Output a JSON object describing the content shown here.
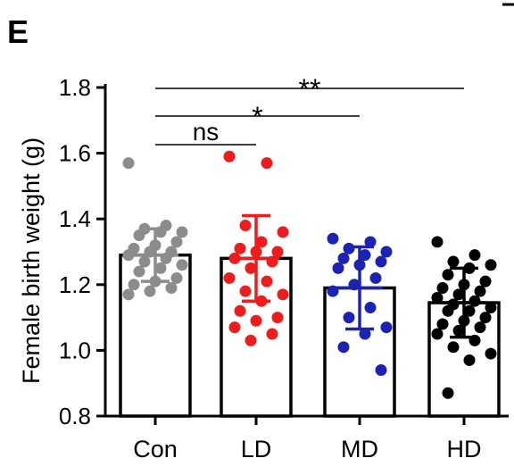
{
  "panel_label": "E",
  "chart_data": {
    "type": "bar",
    "title": "",
    "ylabel": "Female birth weight (g)",
    "xlabel": "",
    "ylim": [
      0.8,
      1.8
    ],
    "yticks": [
      "0.8",
      "1.0",
      "1.2",
      "1.4",
      "1.6",
      "1.8"
    ],
    "categories": [
      "Con",
      "LD",
      "MD",
      "HD"
    ],
    "means": [
      1.29,
      1.28,
      1.19,
      1.145
    ],
    "sd": [
      0.08,
      0.13,
      0.125,
      0.105
    ],
    "colors": [
      "#8c8c8c",
      "#ee1c1c",
      "#1c22b4",
      "#000000"
    ],
    "points": [
      [
        1.57,
        1.38,
        1.37,
        1.36,
        1.36,
        1.35,
        1.33,
        1.32,
        1.31,
        1.3,
        1.3,
        1.29,
        1.28,
        1.27,
        1.26,
        1.25,
        1.24,
        1.22,
        1.21,
        1.2,
        1.19,
        1.18,
        1.17
      ],
      [
        1.59,
        1.57,
        1.38,
        1.36,
        1.33,
        1.31,
        1.3,
        1.3,
        1.28,
        1.27,
        1.25,
        1.22,
        1.21,
        1.18,
        1.17,
        1.15,
        1.12,
        1.1,
        1.09,
        1.07,
        1.05,
        1.03
      ],
      [
        1.34,
        1.33,
        1.31,
        1.3,
        1.29,
        1.28,
        1.27,
        1.26,
        1.25,
        1.22,
        1.2,
        1.18,
        1.13,
        1.1,
        1.07,
        1.05,
        1.01,
        0.94
      ],
      [
        1.33,
        1.29,
        1.27,
        1.26,
        1.25,
        1.23,
        1.21,
        1.2,
        1.19,
        1.18,
        1.17,
        1.16,
        1.15,
        1.14,
        1.13,
        1.12,
        1.12,
        1.1,
        1.09,
        1.08,
        1.07,
        1.06,
        1.05,
        1.03,
        1.01,
        0.99,
        0.97,
        0.87
      ]
    ],
    "significance": [
      {
        "from": 0,
        "to": 1,
        "label": "ns"
      },
      {
        "from": 0,
        "to": 2,
        "label": "*"
      },
      {
        "from": 0,
        "to": 3,
        "label": "**"
      }
    ],
    "grid": false,
    "legend": "none"
  }
}
